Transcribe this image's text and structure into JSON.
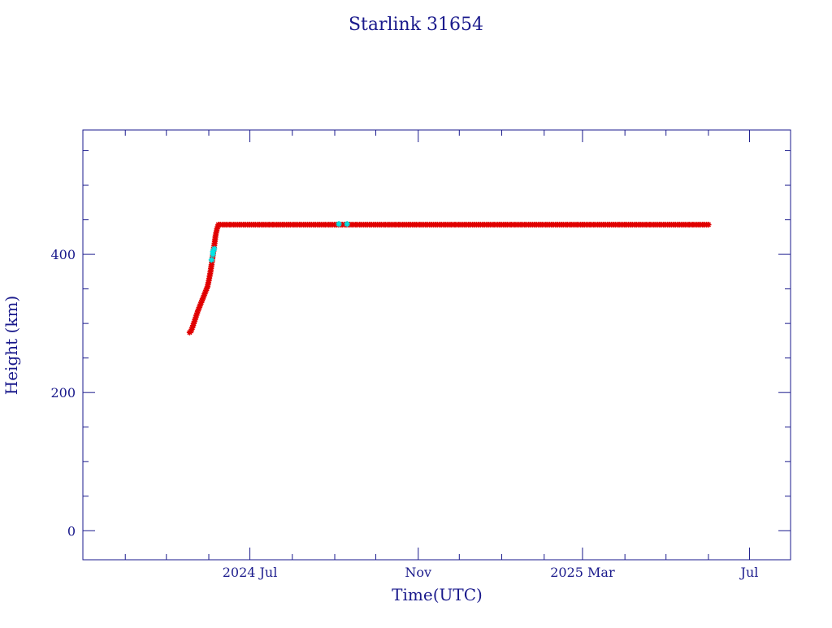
{
  "chart_data": {
    "type": "scatter",
    "title": "Starlink 31654",
    "xlabel": "Time(UTC)",
    "ylabel": "Height (km)",
    "x_axis": {
      "kind": "date",
      "range": [
        "2024-03-01",
        "2025-07-31"
      ],
      "tick_labels": [
        {
          "date": "2024-07-01",
          "label": "2024 Jul"
        },
        {
          "date": "2024-11-01",
          "label": "Nov"
        },
        {
          "date": "2025-03-01",
          "label": "2025 Mar"
        },
        {
          "date": "2025-07-01",
          "label": "Jul"
        }
      ],
      "minor_ticks_monthly": true
    },
    "y_axis": {
      "range": [
        -42,
        580
      ],
      "tick_labels": [
        0,
        200,
        400
      ],
      "minor_tick_step": 50
    },
    "grid": false,
    "colors": {
      "axes": "#1a1a8c",
      "primary_marker": "#e00000",
      "secondary_marker": "#00e5e5"
    },
    "series": [
      {
        "color": "#e00000",
        "marker": "star",
        "points": [
          [
            "2024-05-18",
            287
          ],
          [
            "2024-05-19",
            289
          ],
          [
            "2024-05-20",
            294
          ],
          [
            "2024-05-21",
            300
          ],
          [
            "2024-05-22",
            306
          ],
          [
            "2024-05-23",
            312
          ],
          [
            "2024-05-24",
            318
          ],
          [
            "2024-05-25",
            323
          ],
          [
            "2024-05-26",
            328
          ],
          [
            "2024-05-27",
            333
          ],
          [
            "2024-05-28",
            338
          ],
          [
            "2024-05-29",
            343
          ],
          [
            "2024-05-30",
            348
          ],
          [
            "2024-05-31",
            353
          ],
          [
            "2024-06-01",
            362
          ],
          [
            "2024-06-02",
            372
          ],
          [
            "2024-06-03",
            385
          ],
          [
            "2024-06-05",
            413
          ],
          [
            "2024-06-06",
            428
          ],
          [
            "2024-06-07",
            437
          ],
          [
            "2024-06-08",
            443
          ],
          [
            "2024-06-15",
            443
          ],
          [
            "2024-06-25",
            443
          ],
          [
            "2024-07-05",
            443
          ],
          [
            "2024-07-15",
            443
          ],
          [
            "2024-07-25",
            443
          ],
          [
            "2024-08-05",
            443
          ],
          [
            "2024-08-15",
            443
          ],
          [
            "2024-08-25",
            443
          ],
          [
            "2024-09-05",
            443
          ],
          [
            "2024-09-15",
            443
          ],
          [
            "2024-09-25",
            443
          ],
          [
            "2024-10-05",
            443
          ],
          [
            "2024-10-15",
            443
          ],
          [
            "2024-10-25",
            443
          ],
          [
            "2024-11-05",
            443
          ],
          [
            "2024-11-15",
            443
          ],
          [
            "2024-11-25",
            443
          ],
          [
            "2024-12-05",
            443
          ],
          [
            "2024-12-15",
            443
          ],
          [
            "2024-12-25",
            443
          ],
          [
            "2025-01-05",
            443
          ],
          [
            "2025-01-15",
            443
          ],
          [
            "2025-01-25",
            443
          ],
          [
            "2025-02-05",
            443
          ],
          [
            "2025-02-15",
            443
          ],
          [
            "2025-02-25",
            443
          ],
          [
            "2025-03-05",
            443
          ],
          [
            "2025-03-15",
            443
          ],
          [
            "2025-03-25",
            443
          ],
          [
            "2025-04-05",
            443
          ],
          [
            "2025-04-15",
            443
          ],
          [
            "2025-04-25",
            443
          ],
          [
            "2025-05-05",
            443
          ],
          [
            "2025-05-15",
            443
          ],
          [
            "2025-05-25",
            443
          ],
          [
            "2025-06-01",
            443
          ]
        ]
      },
      {
        "color": "#00e5e5",
        "marker": "star",
        "points": [
          [
            "2024-06-03",
            392
          ],
          [
            "2024-06-04",
            400
          ],
          [
            "2024-06-04",
            404
          ],
          [
            "2024-06-05",
            408
          ],
          [
            "2024-09-04",
            444
          ],
          [
            "2024-09-10",
            444
          ]
        ]
      }
    ]
  }
}
